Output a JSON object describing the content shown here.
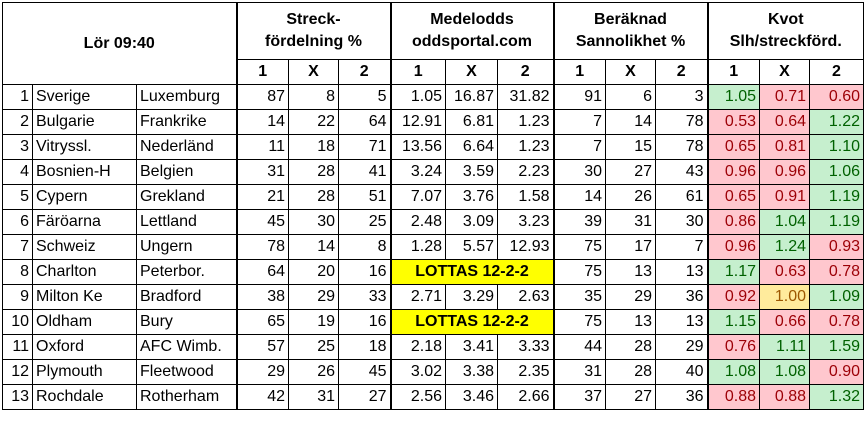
{
  "header": {
    "time_label": "Lör 09:40",
    "group1": [
      "Streck-",
      "fördelning %"
    ],
    "group2": [
      "Medelodds",
      "oddsportal.com"
    ],
    "group3": [
      "Beräknad",
      "Sannolikhet %"
    ],
    "group4": [
      "Kvot",
      "Slh/streckförd."
    ],
    "sub": [
      "1",
      "X",
      "2"
    ]
  },
  "rows": [
    {
      "n": "1",
      "home": "Sverige",
      "away": "Luxemburg",
      "s": [
        "87",
        "8",
        "5"
      ],
      "o": [
        "1.05",
        "16.87",
        "31.82"
      ],
      "p": [
        "91",
        "6",
        "3"
      ],
      "k": [
        "1.05",
        "0.71",
        "0.60"
      ],
      "kc": [
        "green",
        "red",
        "red"
      ]
    },
    {
      "n": "2",
      "home": "Bulgarie",
      "away": "Frankrike",
      "s": [
        "14",
        "22",
        "64"
      ],
      "o": [
        "12.91",
        "6.81",
        "1.23"
      ],
      "p": [
        "7",
        "14",
        "78"
      ],
      "k": [
        "0.53",
        "0.64",
        "1.22"
      ],
      "kc": [
        "red",
        "red",
        "green"
      ]
    },
    {
      "n": "3",
      "home": "Vitryssl.",
      "away": "Nederländ",
      "s": [
        "11",
        "18",
        "71"
      ],
      "o": [
        "13.56",
        "6.64",
        "1.23"
      ],
      "p": [
        "7",
        "15",
        "78"
      ],
      "k": [
        "0.65",
        "0.81",
        "1.10"
      ],
      "kc": [
        "red",
        "red",
        "green"
      ]
    },
    {
      "n": "4",
      "home": "Bosnien-H",
      "away": "Belgien",
      "s": [
        "31",
        "28",
        "41"
      ],
      "o": [
        "3.24",
        "3.59",
        "2.23"
      ],
      "p": [
        "30",
        "27",
        "43"
      ],
      "k": [
        "0.96",
        "0.96",
        "1.06"
      ],
      "kc": [
        "red",
        "red",
        "green"
      ]
    },
    {
      "n": "5",
      "home": "Cypern",
      "away": "Grekland",
      "s": [
        "21",
        "28",
        "51"
      ],
      "o": [
        "7.07",
        "3.76",
        "1.58"
      ],
      "p": [
        "14",
        "26",
        "61"
      ],
      "k": [
        "0.65",
        "0.91",
        "1.19"
      ],
      "kc": [
        "red",
        "red",
        "green"
      ]
    },
    {
      "n": "6",
      "home": "Färöarna",
      "away": "Lettland",
      "s": [
        "45",
        "30",
        "25"
      ],
      "o": [
        "2.48",
        "3.09",
        "3.23"
      ],
      "p": [
        "39",
        "31",
        "30"
      ],
      "k": [
        "0.86",
        "1.04",
        "1.19"
      ],
      "kc": [
        "red",
        "green",
        "green"
      ]
    },
    {
      "n": "7",
      "home": "Schweiz",
      "away": "Ungern",
      "s": [
        "78",
        "14",
        "8"
      ],
      "o": [
        "1.28",
        "5.57",
        "12.93"
      ],
      "p": [
        "75",
        "17",
        "7"
      ],
      "k": [
        "0.96",
        "1.24",
        "0.93"
      ],
      "kc": [
        "red",
        "green",
        "red"
      ]
    },
    {
      "n": "8",
      "home": "Charlton",
      "away": "Peterbor.",
      "s": [
        "64",
        "20",
        "16"
      ],
      "lottas": "LOTTAS 12-2-2",
      "p": [
        "75",
        "13",
        "13"
      ],
      "k": [
        "1.17",
        "0.63",
        "0.78"
      ],
      "kc": [
        "green",
        "red",
        "red"
      ]
    },
    {
      "n": "9",
      "home": "Milton Ke",
      "away": "Bradford",
      "s": [
        "38",
        "29",
        "33"
      ],
      "o": [
        "2.71",
        "3.29",
        "2.63"
      ],
      "p": [
        "35",
        "29",
        "36"
      ],
      "k": [
        "0.92",
        "1.00",
        "1.09"
      ],
      "kc": [
        "red",
        "yellow",
        "green"
      ]
    },
    {
      "n": "10",
      "home": "Oldham",
      "away": "Bury",
      "s": [
        "65",
        "19",
        "16"
      ],
      "lottas": "LOTTAS 12-2-2",
      "p": [
        "75",
        "13",
        "13"
      ],
      "k": [
        "1.15",
        "0.66",
        "0.78"
      ],
      "kc": [
        "green",
        "red",
        "red"
      ]
    },
    {
      "n": "11",
      "home": "Oxford",
      "away": "AFC Wimb.",
      "s": [
        "57",
        "25",
        "18"
      ],
      "o": [
        "2.18",
        "3.41",
        "3.33"
      ],
      "p": [
        "44",
        "28",
        "29"
      ],
      "k": [
        "0.76",
        "1.11",
        "1.59"
      ],
      "kc": [
        "red",
        "green",
        "green"
      ]
    },
    {
      "n": "12",
      "home": "Plymouth",
      "away": "Fleetwood",
      "s": [
        "29",
        "26",
        "45"
      ],
      "o": [
        "3.02",
        "3.38",
        "2.35"
      ],
      "p": [
        "31",
        "28",
        "40"
      ],
      "k": [
        "1.08",
        "1.08",
        "0.90"
      ],
      "kc": [
        "green",
        "green",
        "red"
      ]
    },
    {
      "n": "13",
      "home": "Rochdale",
      "away": "Rotherham",
      "s": [
        "42",
        "31",
        "27"
      ],
      "o": [
        "2.56",
        "3.46",
        "2.66"
      ],
      "p": [
        "37",
        "27",
        "36"
      ],
      "k": [
        "0.88",
        "0.88",
        "1.32"
      ],
      "kc": [
        "red",
        "red",
        "green"
      ]
    }
  ]
}
